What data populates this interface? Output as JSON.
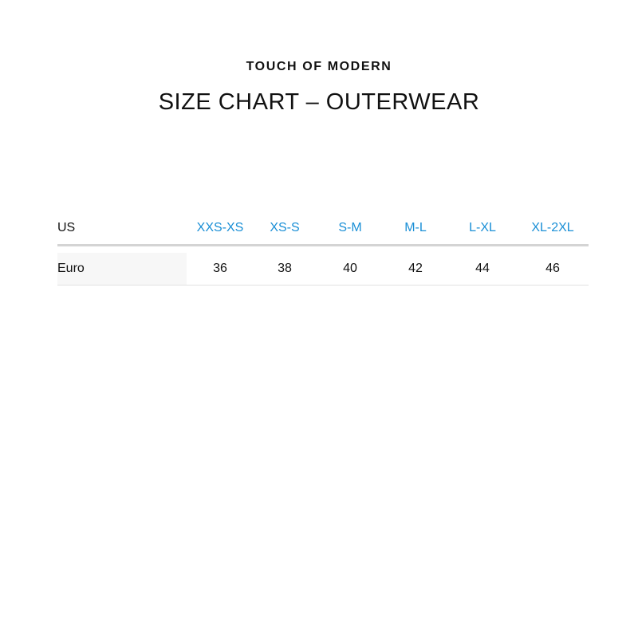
{
  "brand": "TOUCH OF MODERN",
  "title": "SIZE CHART – OUTERWEAR",
  "table": {
    "header_label": "US",
    "us_sizes": [
      "XXS-XS",
      "XS-S",
      "S-M",
      "M-L",
      "L-XL",
      "XL-2XL"
    ],
    "row_label": "Euro",
    "euro_sizes": [
      "36",
      "38",
      "40",
      "42",
      "44",
      "46"
    ]
  },
  "colors": {
    "accent": "#1a8fd6"
  }
}
